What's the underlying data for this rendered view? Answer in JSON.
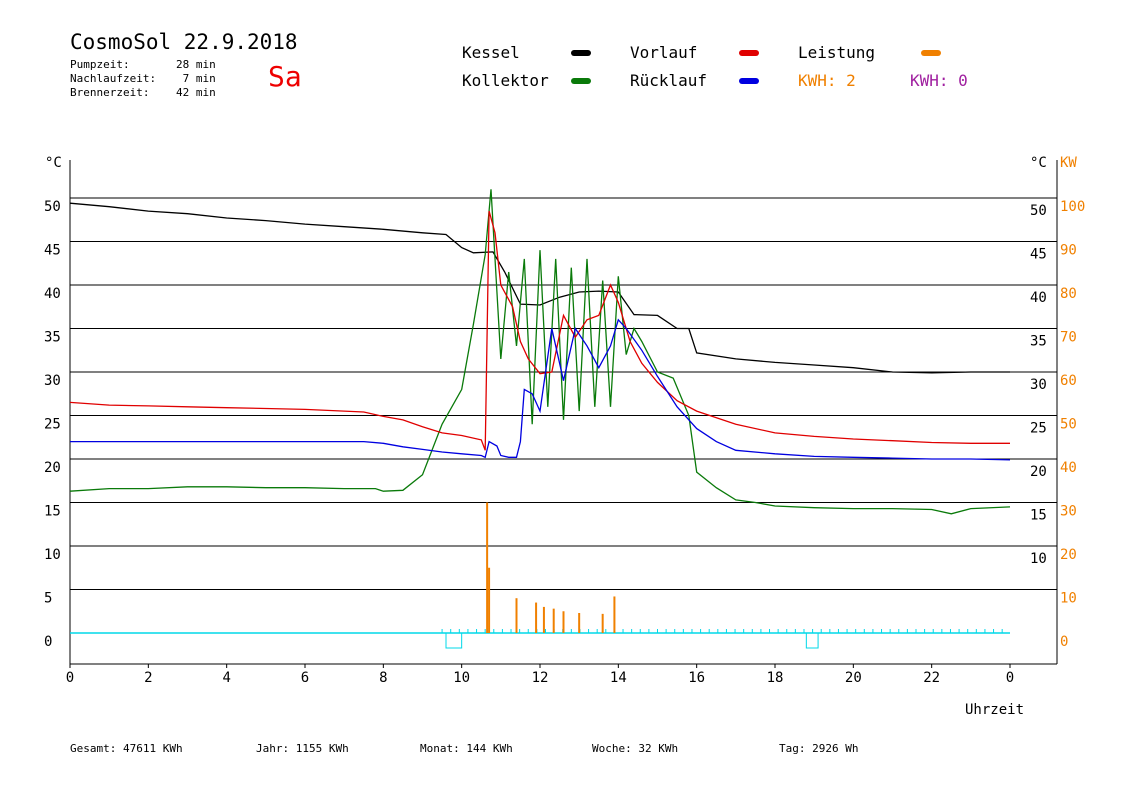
{
  "header": {
    "title": "CosmoSol 22.9.2018",
    "day": "Sa",
    "pumpzeit": "Pumpzeit:       28 min",
    "nachlaufzeit": "Nachlaufzeit:    7 min",
    "brennerzeit": "Brennerzeit:    42 min"
  },
  "legend": {
    "kessel": "Kessel",
    "kollektor": "Kollektor",
    "vorlauf": "Vorlauf",
    "ruecklauf": "Rücklauf",
    "leistung": "Leistung",
    "kwh1": "KWH: 2",
    "kwh2": "KWH: 0"
  },
  "colors": {
    "kessel": "#000000",
    "kollektor": "#0a7a0a",
    "vorlauf": "#e00000",
    "ruecklauf": "#0000e0",
    "leistung": "#f08000",
    "kwh2": "#a020a0",
    "pump": "#00d8e8"
  },
  "footer": {
    "gesamt": "Gesamt:  47611 KWh",
    "jahr": "Jahr:   1155 KWh",
    "monat": "Monat:    144 KWh",
    "woche": "Woche:     32 KWh",
    "tag": "Tag:   2926 Wh"
  },
  "chart_data": {
    "type": "line",
    "xlabel": "Uhrzeit",
    "ylabel_left": "°C",
    "ylabel_right_1": "°C",
    "ylabel_right_2": "KW",
    "xlim": [
      0,
      24
    ],
    "ylim": [
      0,
      50
    ],
    "y2lim": [
      0,
      100
    ],
    "x_ticks": [
      "0",
      "2",
      "4",
      "6",
      "8",
      "10",
      "12",
      "14",
      "16",
      "18",
      "20",
      "22",
      "0"
    ],
    "y_ticks": [
      "0",
      "5",
      "10",
      "15",
      "20",
      "25",
      "30",
      "35",
      "40",
      "45",
      "50"
    ],
    "y2_ticks": [
      "0",
      "10",
      "20",
      "30",
      "40",
      "50",
      "60",
      "70",
      "80",
      "90",
      "100"
    ],
    "grid": true,
    "series": [
      {
        "name": "Kessel",
        "color": "#000000",
        "x": [
          0,
          1,
          2,
          3,
          4,
          5,
          6,
          7,
          8,
          9,
          9.6,
          10,
          10.3,
          10.8,
          11.1,
          11.5,
          12,
          12.5,
          13,
          13.5,
          14,
          14.4,
          15,
          15.5,
          15.8,
          16,
          17,
          18,
          19,
          20,
          21,
          22,
          23,
          24
        ],
        "y": [
          49.4,
          49.0,
          48.5,
          48.2,
          47.7,
          47.4,
          47.0,
          46.7,
          46.4,
          46.0,
          45.8,
          44.3,
          43.7,
          43.8,
          41.5,
          37.8,
          37.7,
          38.6,
          39.2,
          39.3,
          39.2,
          36.6,
          36.5,
          35.0,
          35.0,
          32.2,
          31.5,
          31.1,
          30.8,
          30.5,
          30.0,
          29.9,
          30.0,
          30.0
        ]
      },
      {
        "name": "Kollektor",
        "color": "#0a7a0a",
        "x": [
          0,
          1,
          2,
          3,
          4,
          5,
          6,
          7,
          7.8,
          8,
          8.5,
          9,
          9.5,
          10,
          10.3,
          10.6,
          10.75,
          11,
          11.2,
          11.4,
          11.6,
          11.8,
          12,
          12.2,
          12.4,
          12.6,
          12.8,
          13,
          13.2,
          13.4,
          13.6,
          13.8,
          14,
          14.2,
          14.4,
          14.6,
          15,
          15.4,
          15.8,
          16,
          16.5,
          17,
          17.5,
          18,
          19,
          20,
          21,
          22,
          22.5,
          23,
          24
        ],
        "y": [
          16.3,
          16.6,
          16.6,
          16.8,
          16.8,
          16.7,
          16.7,
          16.6,
          16.6,
          16.3,
          16.4,
          18.2,
          24.0,
          28.0,
          35.5,
          43.5,
          51.0,
          31.5,
          41.5,
          33.0,
          43.0,
          24.0,
          44.0,
          26.0,
          43.0,
          24.5,
          42.0,
          25.5,
          43.0,
          26.0,
          40.5,
          26.0,
          41.0,
          32.0,
          35.0,
          33.5,
          30.0,
          29.3,
          25.0,
          18.5,
          16.7,
          15.3,
          15.0,
          14.6,
          14.4,
          14.3,
          14.3,
          14.2,
          13.7,
          14.3,
          14.5
        ]
      },
      {
        "name": "Vorlauf",
        "color": "#e00000",
        "x": [
          0,
          1,
          2,
          3,
          4,
          5,
          6,
          7,
          7.5,
          8,
          8.5,
          9,
          9.5,
          10,
          10.5,
          10.6,
          10.7,
          10.85,
          11,
          11.3,
          11.5,
          11.7,
          12,
          12.3,
          12.6,
          12.9,
          13.2,
          13.5,
          13.8,
          14,
          14.3,
          14.6,
          15,
          15.5,
          16,
          17,
          18,
          19,
          20,
          21,
          22,
          23,
          24
        ],
        "y": [
          26.5,
          26.2,
          26.1,
          26.0,
          25.9,
          25.8,
          25.7,
          25.5,
          25.4,
          24.9,
          24.5,
          23.7,
          23.0,
          22.7,
          22.2,
          21.0,
          48.5,
          46.0,
          40.0,
          37.5,
          33.5,
          31.5,
          29.8,
          30.0,
          36.5,
          34.0,
          36.0,
          36.5,
          40.0,
          38.0,
          33.5,
          31.0,
          28.8,
          26.7,
          25.5,
          24.0,
          23.0,
          22.6,
          22.3,
          22.1,
          21.9,
          21.8,
          21.8
        ]
      },
      {
        "name": "Rücklauf",
        "color": "#0000e0",
        "x": [
          0,
          1,
          2,
          3,
          4,
          5,
          6,
          7,
          7.5,
          8,
          8.5,
          9,
          9.5,
          10,
          10.5,
          10.6,
          10.7,
          10.9,
          11,
          11.2,
          11.4,
          11.5,
          11.6,
          11.8,
          12,
          12.3,
          12.6,
          12.9,
          13.2,
          13.5,
          13.8,
          14,
          14.2,
          14.6,
          15,
          15.5,
          16,
          16.5,
          17,
          18,
          19,
          20,
          21,
          22,
          23,
          24
        ],
        "y": [
          22.0,
          22.0,
          22.0,
          22.0,
          22.0,
          22.0,
          22.0,
          22.0,
          22.0,
          21.8,
          21.4,
          21.1,
          20.8,
          20.6,
          20.4,
          20.2,
          22.0,
          21.5,
          20.4,
          20.2,
          20.2,
          22.0,
          28.0,
          27.5,
          25.5,
          35.0,
          29.0,
          35.0,
          33.0,
          30.5,
          33.0,
          36.0,
          35.0,
          32.5,
          29.5,
          26.0,
          23.5,
          22.0,
          21.0,
          20.6,
          20.3,
          20.2,
          20.1,
          20.0,
          20.0,
          19.9
        ]
      },
      {
        "name": "Leistung",
        "color": "#f08000",
        "x": [
          10.65,
          10.7,
          11.4,
          11.9,
          12.1,
          12.35,
          12.6,
          13.0,
          13.6,
          13.9
        ],
        "y": [
          15.0,
          7.5,
          4.0,
          3.5,
          3.0,
          2.8,
          2.5,
          2.3,
          2.2,
          4.2
        ]
      }
    ]
  }
}
